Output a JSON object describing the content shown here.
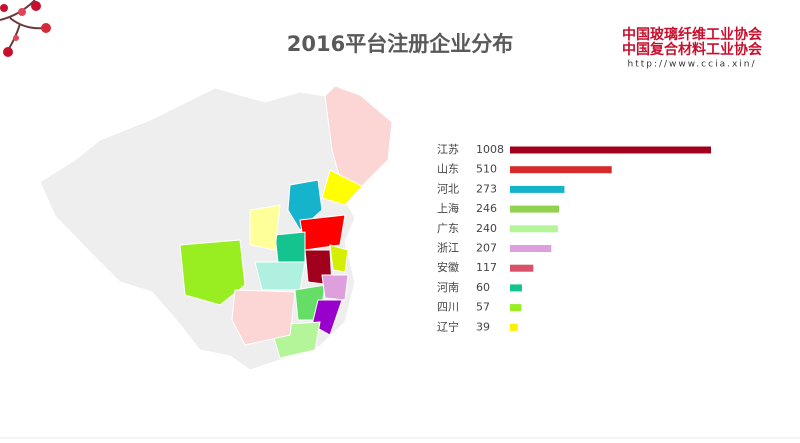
{
  "header": {
    "logo_line1": "中国玻璃纤维工业协会",
    "logo_line2": "中国复合材料工业协会",
    "url": "http://www.ccia.xin/"
  },
  "chart_data": {
    "type": "bar",
    "orientation": "horizontal",
    "title": "2016平台注册企业分布",
    "categories": [
      "江苏",
      "山东",
      "河北",
      "上海",
      "广东",
      "浙江",
      "安徽",
      "河南",
      "四川",
      "辽宁"
    ],
    "values": [
      1008,
      510,
      273,
      246,
      240,
      207,
      117,
      60,
      57,
      39
    ],
    "colors": [
      "#a0001c",
      "#d42a2a",
      "#15b4cc",
      "#92d050",
      "#b4f59a",
      "#dda0dd",
      "#d9506a",
      "#14c38e",
      "#99ee22",
      "#ffee00"
    ]
  }
}
